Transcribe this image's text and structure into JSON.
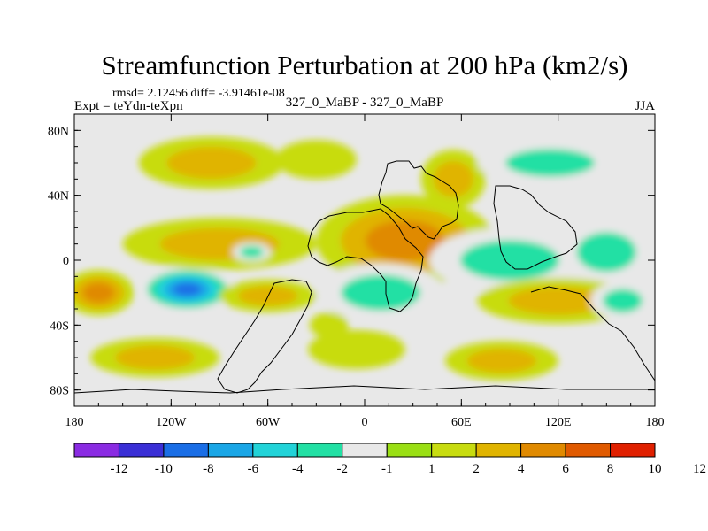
{
  "chart_data": {
    "type": "heatmap",
    "title": "Streamfunction Perturbation at 200 hPa (km2/s)",
    "subtitle_stats": "rmsd= 2.12456 diff= -3.91461e-08",
    "left_label": "Expt = teYdn-teXpn",
    "center_label": "327_0_MaBP - 327_0_MaBP",
    "right_label": "JJA",
    "xlim": [
      -180,
      180
    ],
    "ylim": [
      -90,
      90
    ],
    "x_ticks": [
      {
        "value": -180,
        "label": "180"
      },
      {
        "value": -120,
        "label": "120W"
      },
      {
        "value": -60,
        "label": "60W"
      },
      {
        "value": 0,
        "label": "0"
      },
      {
        "value": 60,
        "label": "60E"
      },
      {
        "value": 120,
        "label": "120E"
      },
      {
        "value": 180,
        "label": "180"
      }
    ],
    "y_ticks": [
      {
        "value": 80,
        "label": "80N"
      },
      {
        "value": 40,
        "label": "40N"
      },
      {
        "value": 0,
        "label": "0"
      },
      {
        "value": -40,
        "label": "40S"
      },
      {
        "value": -80,
        "label": "80S"
      }
    ],
    "colorbar": {
      "colors": [
        "#8a2be2",
        "#3a2fd6",
        "#1a6ee6",
        "#1aa6e6",
        "#22d3d8",
        "#22e0a4",
        "#e8e8e8",
        "#9adf14",
        "#c8dc10",
        "#e0b400",
        "#e08a00",
        "#e05a00",
        "#e02000"
      ],
      "labels": [
        "-12",
        "-10",
        "-8",
        "-6",
        "-4",
        "-2",
        "-1",
        "1",
        "2",
        "4",
        "6",
        "8",
        "10",
        "12"
      ]
    },
    "anomaly_centers": [
      {
        "lon": -110,
        "lat": -18,
        "value": -9,
        "rx": 30,
        "ry": 14
      },
      {
        "lon": -90,
        "lat": 10,
        "value": 3,
        "rx": 60,
        "ry": 16
      },
      {
        "lon": -95,
        "lat": 60,
        "value": 3,
        "rx": 45,
        "ry": 16
      },
      {
        "lon": -30,
        "lat": 62,
        "value": 2,
        "rx": 25,
        "ry": 12
      },
      {
        "lon": 25,
        "lat": 12,
        "value": 5,
        "rx": 55,
        "ry": 28
      },
      {
        "lon": 55,
        "lat": 50,
        "value": 3,
        "rx": 20,
        "ry": 18
      },
      {
        "lon": 90,
        "lat": 0,
        "value": -3,
        "rx": 50,
        "ry": 20
      },
      {
        "lon": 150,
        "lat": 5,
        "value": -3,
        "rx": 30,
        "ry": 20
      },
      {
        "lon": 115,
        "lat": 60,
        "value": -3,
        "rx": 45,
        "ry": 14
      },
      {
        "lon": 10,
        "lat": -20,
        "value": -4,
        "rx": 40,
        "ry": 18
      },
      {
        "lon": -60,
        "lat": -22,
        "value": 3,
        "rx": 30,
        "ry": 10
      },
      {
        "lon": -165,
        "lat": -20,
        "value": 5,
        "rx": 22,
        "ry": 14
      },
      {
        "lon": 120,
        "lat": -25,
        "value": 3,
        "rx": 50,
        "ry": 14
      },
      {
        "lon": 160,
        "lat": -25,
        "value": -3,
        "rx": 20,
        "ry": 12
      },
      {
        "lon": -130,
        "lat": -60,
        "value": 3,
        "rx": 40,
        "ry": 12
      },
      {
        "lon": 85,
        "lat": -62,
        "value": 4,
        "rx": 35,
        "ry": 12
      },
      {
        "lon": -5,
        "lat": -55,
        "value": 2,
        "rx": 30,
        "ry": 12
      },
      {
        "lon": -70,
        "lat": 5,
        "value": -3,
        "rx": 12,
        "ry": 6
      },
      {
        "lon": -22,
        "lat": -40,
        "value": 2,
        "rx": 12,
        "ry": 8
      }
    ]
  }
}
